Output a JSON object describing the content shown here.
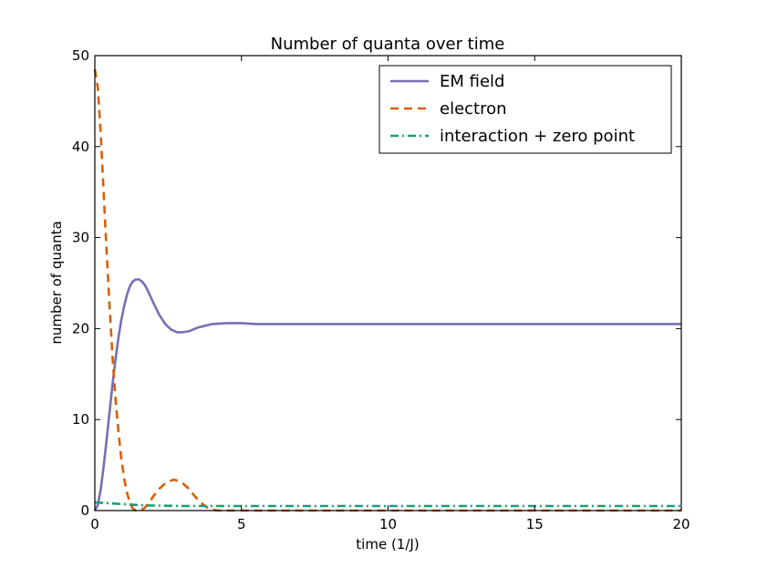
{
  "chart_data": {
    "type": "line",
    "title": "Number of quanta over time",
    "xlabel": "time (1/J)",
    "ylabel": "number of quanta",
    "xlim": [
      0,
      20
    ],
    "ylim": [
      0,
      50
    ],
    "xticks": [
      0,
      5,
      10,
      15,
      20
    ],
    "yticks": [
      0,
      10,
      20,
      30,
      40,
      50
    ],
    "legend_position": "top-right",
    "grid": false,
    "series": [
      {
        "name": "EM field",
        "color": "#7570b3",
        "style": "solid",
        "points": [
          [
            0,
            0
          ],
          [
            0.1,
            0.6
          ],
          [
            0.2,
            2.3
          ],
          [
            0.3,
            4.8
          ],
          [
            0.4,
            7.8
          ],
          [
            0.5,
            10.8
          ],
          [
            0.6,
            13.8
          ],
          [
            0.7,
            16.5
          ],
          [
            0.8,
            18.9
          ],
          [
            0.9,
            20.9
          ],
          [
            1.0,
            22.5
          ],
          [
            1.1,
            23.8
          ],
          [
            1.2,
            24.7
          ],
          [
            1.3,
            25.2
          ],
          [
            1.4,
            25.4
          ],
          [
            1.5,
            25.4
          ],
          [
            1.6,
            25.2
          ],
          [
            1.7,
            24.8
          ],
          [
            1.8,
            24.2
          ],
          [
            1.9,
            23.5
          ],
          [
            2.0,
            22.8
          ],
          [
            2.2,
            21.5
          ],
          [
            2.4,
            20.5
          ],
          [
            2.6,
            19.9
          ],
          [
            2.8,
            19.6
          ],
          [
            3.0,
            19.6
          ],
          [
            3.2,
            19.7
          ],
          [
            3.5,
            20.1
          ],
          [
            4.0,
            20.5
          ],
          [
            4.5,
            20.6
          ],
          [
            5.0,
            20.6
          ],
          [
            5.5,
            20.5
          ],
          [
            6.0,
            20.5
          ],
          [
            8,
            20.5
          ],
          [
            10,
            20.5
          ],
          [
            12,
            20.5
          ],
          [
            15,
            20.5
          ],
          [
            18,
            20.5
          ],
          [
            20,
            20.5
          ]
        ]
      },
      {
        "name": "electron",
        "color": "#d95f02",
        "style": "dashed",
        "points": [
          [
            0,
            48.5
          ],
          [
            0.1,
            46.5
          ],
          [
            0.2,
            41.5
          ],
          [
            0.3,
            35.0
          ],
          [
            0.4,
            28.5
          ],
          [
            0.5,
            22.5
          ],
          [
            0.6,
            17.0
          ],
          [
            0.7,
            12.5
          ],
          [
            0.8,
            8.8
          ],
          [
            0.9,
            5.8
          ],
          [
            1.0,
            3.5
          ],
          [
            1.1,
            1.9
          ],
          [
            1.2,
            0.8
          ],
          [
            1.3,
            0.2
          ],
          [
            1.4,
            0.0
          ],
          [
            1.5,
            0.0
          ],
          [
            1.6,
            0.1
          ],
          [
            1.7,
            0.3
          ],
          [
            1.8,
            0.7
          ],
          [
            1.9,
            1.1
          ],
          [
            2.0,
            1.6
          ],
          [
            2.2,
            2.4
          ],
          [
            2.4,
            3.0
          ],
          [
            2.6,
            3.3
          ],
          [
            2.7,
            3.4
          ],
          [
            2.8,
            3.3
          ],
          [
            3.0,
            3.0
          ],
          [
            3.2,
            2.4
          ],
          [
            3.4,
            1.6
          ],
          [
            3.6,
            0.9
          ],
          [
            3.8,
            0.4
          ],
          [
            4.0,
            0.1
          ],
          [
            4.2,
            0.0
          ],
          [
            5,
            0.0
          ],
          [
            7,
            0.0
          ],
          [
            10,
            0.0
          ],
          [
            15,
            0.0
          ],
          [
            20,
            0.0
          ]
        ]
      },
      {
        "name": "interaction + zero point",
        "color": "#1b9e77",
        "style": "dashdot",
        "points": [
          [
            0,
            0.9
          ],
          [
            0.5,
            0.8
          ],
          [
            1.0,
            0.7
          ],
          [
            1.5,
            0.6
          ],
          [
            2.0,
            0.55
          ],
          [
            3.0,
            0.5
          ],
          [
            4.0,
            0.5
          ],
          [
            6,
            0.5
          ],
          [
            10,
            0.5
          ],
          [
            15,
            0.5
          ],
          [
            20,
            0.5
          ]
        ]
      }
    ]
  }
}
